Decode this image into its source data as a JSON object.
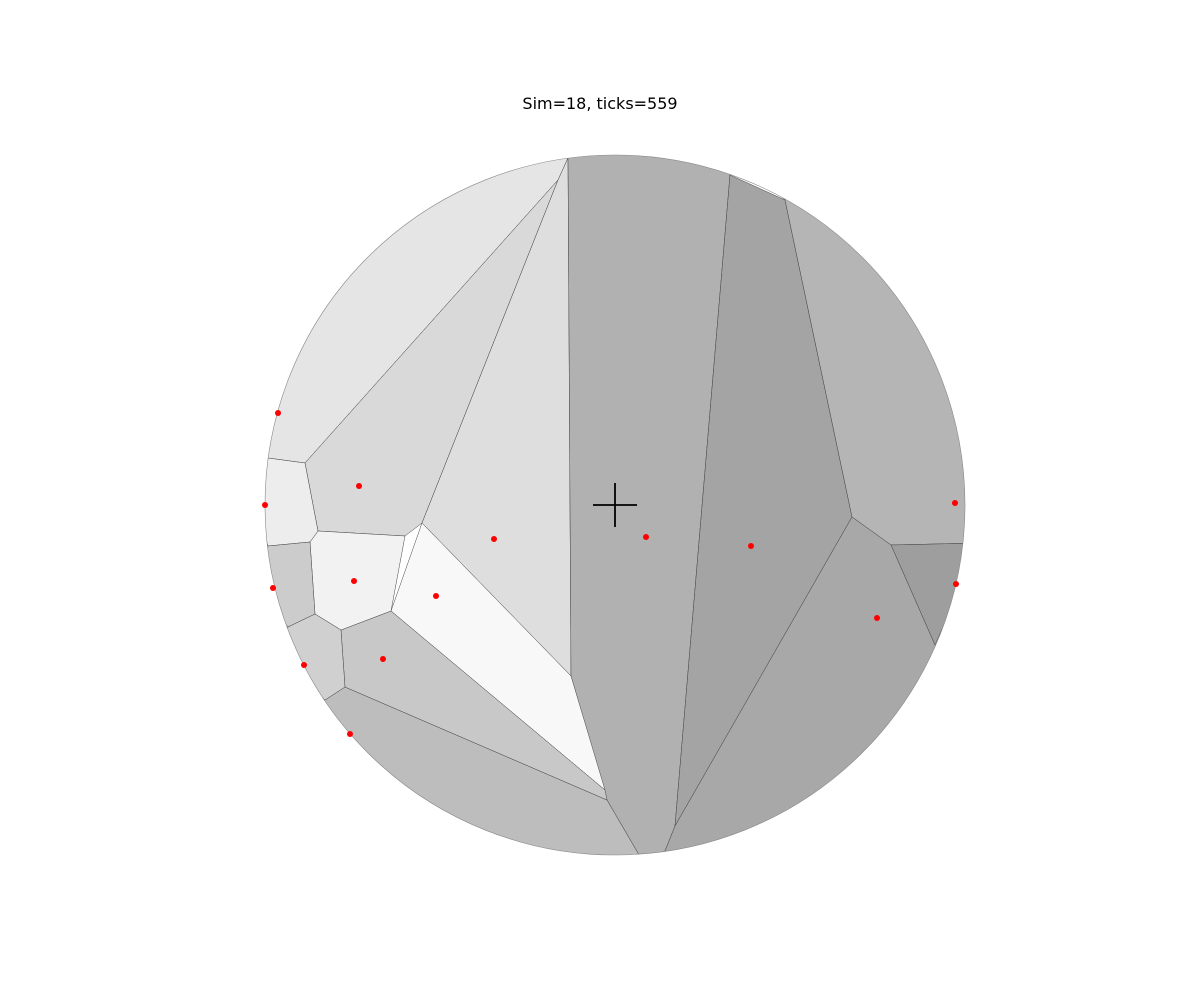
{
  "title": "Sim=18, ticks=559",
  "colors": {
    "site": "#ff0000",
    "cell_stroke": "#444444",
    "crosshair": "#000000",
    "background": "#ffffff"
  },
  "diagram": {
    "type": "voronoi-in-disk",
    "cell_count": 15,
    "site_count": 15,
    "cell_shades": [
      "#e5e5e5",
      "#d9d9d9",
      "#dedede",
      "#b1b1b1",
      "#a4a4a4",
      "#b5b5b5",
      "#9e9e9e",
      "#a8a8a8",
      "#bdbdbd",
      "#f8f8f8",
      "#c8c8c8",
      "#f2f2f2",
      "#ededed",
      "#cccccc",
      "#d0d0d0"
    ]
  }
}
